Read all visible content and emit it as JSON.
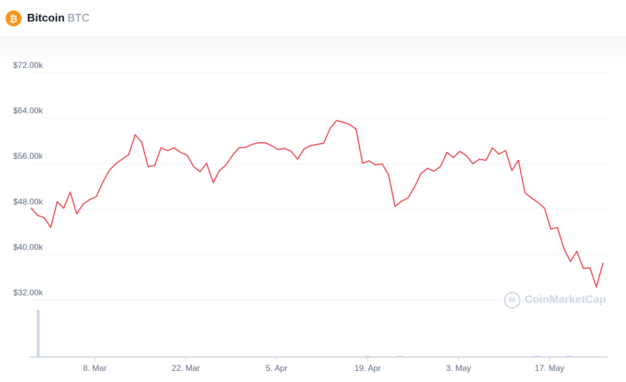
{
  "header": {
    "name": "Bitcoin",
    "symbol": "BTC",
    "logo_glyph": "₿",
    "logo_color": "#f7931a"
  },
  "watermark": {
    "text": "CoinMarketCap",
    "glyph": "M"
  },
  "chart_data": {
    "type": "line",
    "line_color": "#ea3943",
    "grid": true,
    "y_ticks": [
      "$32.00k",
      "$40.00k",
      "$48.00k",
      "$56.00k",
      "$64.00k",
      "$72.00k"
    ],
    "y_tick_values": [
      32,
      40,
      48,
      56,
      64,
      72
    ],
    "ylim": [
      32,
      72
    ],
    "y_unit": "USD thousands",
    "x_ticks": [
      "8. Mar",
      "22. Mar",
      "5. Apr",
      "19. Apr",
      "3. May",
      "17. May"
    ],
    "x": [
      "26 Feb",
      "27 Feb",
      "28 Feb",
      "1 Mar",
      "2 Mar",
      "3 Mar",
      "4 Mar",
      "5 Mar",
      "6 Mar",
      "7 Mar",
      "8 Mar",
      "9 Mar",
      "10 Mar",
      "11 Mar",
      "12 Mar",
      "13 Mar",
      "14 Mar",
      "15 Mar",
      "16 Mar",
      "17 Mar",
      "18 Mar",
      "19 Mar",
      "20 Mar",
      "21 Mar",
      "22 Mar",
      "23 Mar",
      "24 Mar",
      "25 Mar",
      "26 Mar",
      "27 Mar",
      "28 Mar",
      "29 Mar",
      "30 Mar",
      "31 Mar",
      "1 Apr",
      "2 Apr",
      "3 Apr",
      "4 Apr",
      "5 Apr",
      "6 Apr",
      "7 Apr",
      "8 Apr",
      "9 Apr",
      "10 Apr",
      "11 Apr",
      "12 Apr",
      "13 Apr",
      "14 Apr",
      "15 Apr",
      "16 Apr",
      "17 Apr",
      "18 Apr",
      "19 Apr",
      "20 Apr",
      "21 Apr",
      "22 Apr",
      "23 Apr",
      "24 Apr",
      "25 Apr",
      "26 Apr",
      "27 Apr",
      "28 Apr",
      "29 Apr",
      "30 Apr",
      "1 May",
      "2 May",
      "3 May",
      "4 May",
      "5 May",
      "6 May",
      "7 May",
      "8 May",
      "9 May",
      "10 May",
      "11 May",
      "12 May",
      "13 May",
      "14 May",
      "15 May",
      "16 May",
      "17 May",
      "18 May",
      "19 May",
      "20 May",
      "21 May",
      "22 May",
      "23 May",
      "24 May",
      "25 May"
    ],
    "values": [
      48.2,
      46.9,
      46.5,
      44.8,
      49.3,
      48.2,
      51.0,
      47.2,
      48.9,
      49.7,
      50.2,
      52.7,
      54.8,
      56.0,
      56.8,
      57.6,
      61.1,
      59.8,
      55.5,
      55.7,
      58.8,
      58.3,
      58.8,
      58.0,
      57.5,
      55.5,
      54.6,
      56.1,
      52.7,
      54.8,
      55.8,
      57.5,
      58.8,
      58.9,
      59.4,
      59.7,
      59.7,
      59.2,
      58.5,
      58.7,
      58.2,
      56.8,
      58.6,
      59.2,
      59.4,
      59.6,
      62.2,
      63.6,
      63.3,
      62.9,
      62.1,
      56.1,
      56.5,
      55.8,
      56.0,
      54.1,
      48.5,
      49.4,
      50.0,
      51.9,
      54.3,
      55.2,
      54.7,
      55.5,
      58.0,
      57.1,
      58.2,
      57.4,
      56.0,
      56.8,
      56.6,
      58.8,
      57.7,
      58.3,
      54.8,
      56.6,
      50.9,
      50.0,
      49.2,
      48.2,
      44.5,
      44.8,
      41.1,
      38.8,
      40.6,
      37.6,
      37.7,
      34.3,
      38.5
    ],
    "volume": {
      "bar_color": "#cfd6e4",
      "dates": [
        "26 Feb",
        "19 Apr",
        "24 Apr",
        "15 May",
        "20 May"
      ],
      "relative_values": [
        1.0,
        0.02,
        0.02,
        0.02,
        0.02
      ]
    }
  }
}
